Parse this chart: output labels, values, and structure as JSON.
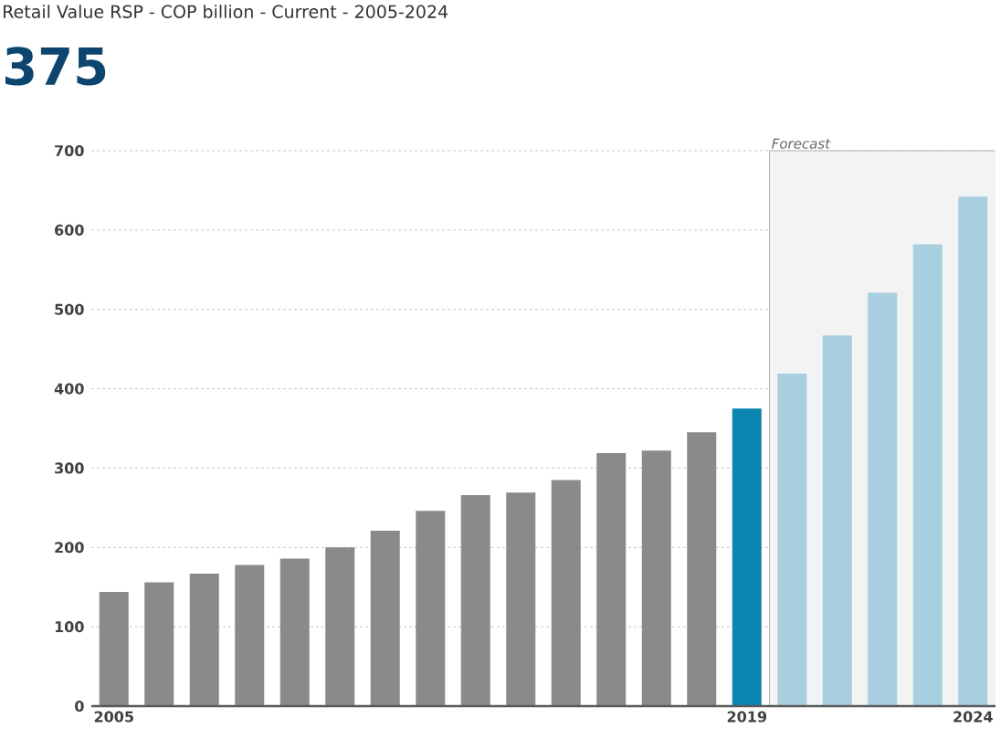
{
  "chart_data": {
    "type": "bar",
    "title": "Retail Value RSP - COP billion - Current - 2005-2024",
    "subtitle": "375",
    "x": [
      2005,
      2006,
      2007,
      2008,
      2009,
      2010,
      2011,
      2012,
      2013,
      2014,
      2015,
      2016,
      2017,
      2018,
      2019,
      2020,
      2021,
      2022,
      2023,
      2024
    ],
    "values": [
      144,
      156,
      167,
      178,
      186,
      200,
      221,
      246,
      266,
      269,
      285,
      319,
      322,
      345,
      375,
      419,
      467,
      521,
      582,
      642
    ],
    "colors": [
      "#8a8a8c",
      "#8a8a8c",
      "#8a8a8c",
      "#8a8a8c",
      "#8a8a8c",
      "#8a8a8c",
      "#8a8a8c",
      "#8a8a8c",
      "#8a8a8c",
      "#8a8a8c",
      "#8a8a8c",
      "#8a8a8c",
      "#8a8a8c",
      "#8a8a8c",
      "#0a86b0",
      "#a8cfe0",
      "#a8cfe0",
      "#a8cfe0",
      "#a8cfe0",
      "#a8cfe0"
    ],
    "xlim": [
      2004.5,
      2024.5
    ],
    "xticks": [
      2005,
      2019,
      2024
    ],
    "ylim": [
      0,
      700
    ],
    "yticks": [
      0,
      100,
      200,
      300,
      400,
      500,
      600,
      700
    ],
    "grid": "y",
    "bands": [
      {
        "axis": "x",
        "from": 2019.5,
        "to": 2024.5,
        "label": "Forecast",
        "color": "#f3f3f3"
      }
    ]
  }
}
